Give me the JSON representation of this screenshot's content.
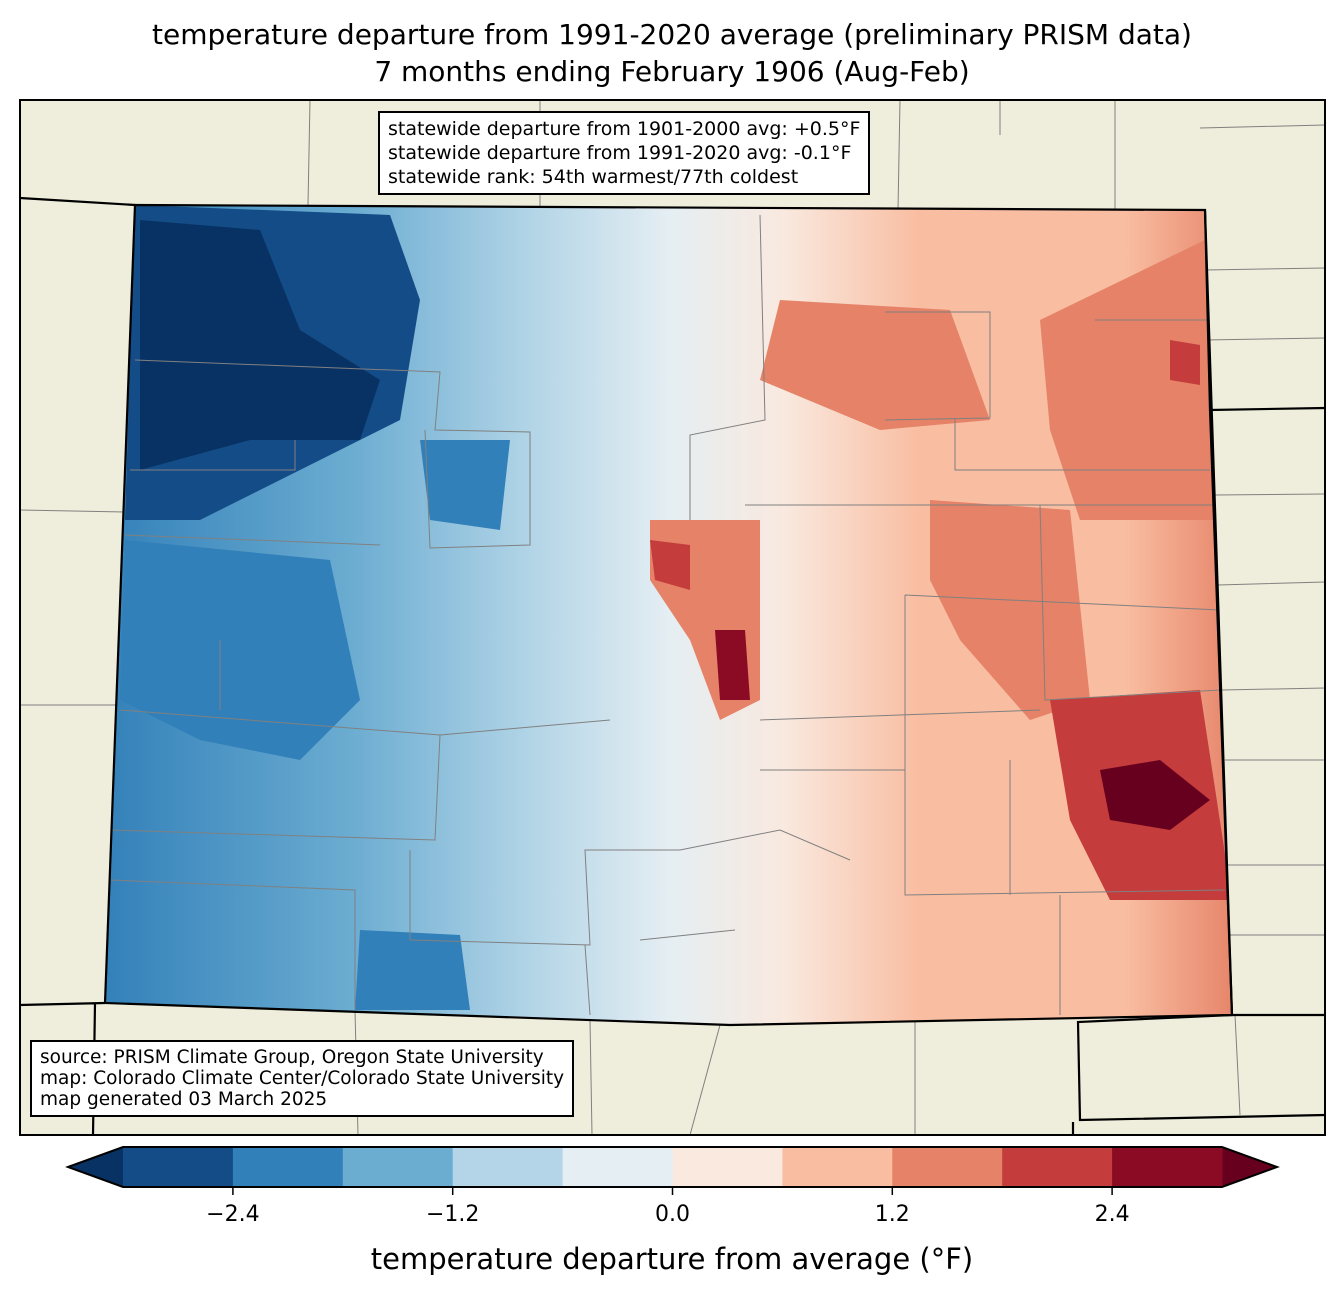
{
  "title": {
    "line1": "temperature departure from 1991-2020 average (preliminary PRISM data)",
    "line2": "7 months ending February 1906 (Aug-Feb)"
  },
  "stats_box": {
    "lines": [
      "statewide departure from 1901-2000 avg: +0.5°F",
      "statewide departure from 1991-2020 avg: -0.1°F",
      "statewide rank: 54th warmest/77th coldest"
    ]
  },
  "source_box": {
    "lines": [
      "source: PRISM Climate Group, Oregon State University",
      "map: Colorado Climate Center/Colorado State University",
      "map generated 03 March 2025"
    ]
  },
  "colorbar": {
    "label": "temperature departure from average (°F)",
    "bounds": [
      -3.0,
      -2.4,
      -1.8,
      -1.2,
      -0.6,
      0.0,
      0.6,
      1.2,
      1.8,
      2.4,
      3.0
    ],
    "colors": [
      "#144c87",
      "#3280b9",
      "#6bacd1",
      "#b3d5e7",
      "#e5eef3",
      "#f9e9df",
      "#f9bda1",
      "#e58267",
      "#c43c3c",
      "#8b0b25"
    ],
    "extend_low_color": "#083263",
    "extend_high_color": "#67001f",
    "ticks": [
      {
        "value": -2.4,
        "label": "−2.4"
      },
      {
        "value": -1.2,
        "label": "−1.2"
      },
      {
        "value": 0.0,
        "label": "0.0"
      },
      {
        "value": 1.2,
        "label": "1.2"
      },
      {
        "value": 2.4,
        "label": "2.4"
      }
    ]
  },
  "map": {
    "land_color": "#efeddb",
    "border_color": "#000000",
    "county_color": "#808080"
  }
}
